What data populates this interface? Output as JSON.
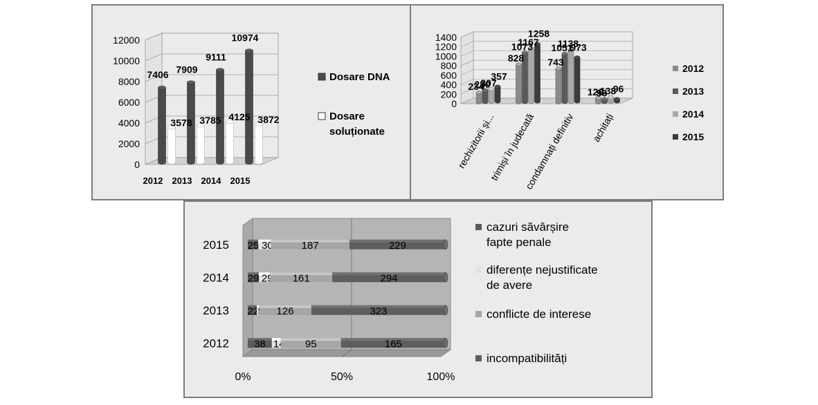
{
  "chart_data": [
    {
      "type": "bar",
      "categories": [
        "2012",
        "2013",
        "2014",
        "2015"
      ],
      "series": [
        {
          "name": "Dosare DNA",
          "values": [
            7406,
            7909,
            9111,
            10974
          ]
        },
        {
          "name": "Dosare soluționate",
          "values": [
            3578,
            3785,
            4125,
            3872
          ]
        }
      ],
      "yticks": [
        "0",
        "2000",
        "4000",
        "6000",
        "8000",
        "10000",
        "12000"
      ],
      "ylim": [
        0,
        12000
      ],
      "legend_position": "right",
      "colors": [
        "#4a4a4a",
        "#ffffff"
      ]
    },
    {
      "type": "bar",
      "categories": [
        "rechizitorii și...",
        "trimiși în judecată",
        "condamnați definitiv",
        "achitați"
      ],
      "series": [
        {
          "name": "2012",
          "values": [
            234,
            828,
            743,
            120
          ]
        },
        {
          "name": "2013",
          "values": [
            280,
            1073,
            1051,
            93
          ]
        },
        {
          "name": "2014",
          "values": [
            307,
            1167,
            1138,
            138
          ]
        },
        {
          "name": "2015",
          "values": [
            357,
            1258,
            973,
            96
          ]
        }
      ],
      "yticks": [
        "0",
        "200",
        "400",
        "600",
        "800",
        "1000",
        "1200",
        "1400"
      ],
      "ylim": [
        0,
        1400
      ],
      "legend_position": "right",
      "colors": [
        "#8a8a8a",
        "#5a5a5a",
        "#a8a8a8",
        "#3c3c3c"
      ]
    },
    {
      "type": "bar",
      "orientation": "horizontal",
      "stacked": "percent",
      "categories": [
        "2012",
        "2013",
        "2014",
        "2015"
      ],
      "series": [
        {
          "name": "cazuri săvârșire fapte penale",
          "values": [
            38,
            22,
            29,
            25
          ]
        },
        {
          "name": "diferențe nejustificate de avere",
          "values": [
            14,
            5,
            29,
            30
          ]
        },
        {
          "name": "conflicte de interese",
          "values": [
            95,
            126,
            161,
            187
          ]
        },
        {
          "name": "incompatibilități",
          "values": [
            165,
            323,
            294,
            229
          ]
        }
      ],
      "xticks": [
        "0%",
        "50%",
        "100%"
      ],
      "xlim": [
        0,
        100
      ],
      "legend_position": "right",
      "colors": [
        "#595959",
        "#e2e2e2",
        "#a6a6a6",
        "#5e5e5e"
      ]
    }
  ]
}
